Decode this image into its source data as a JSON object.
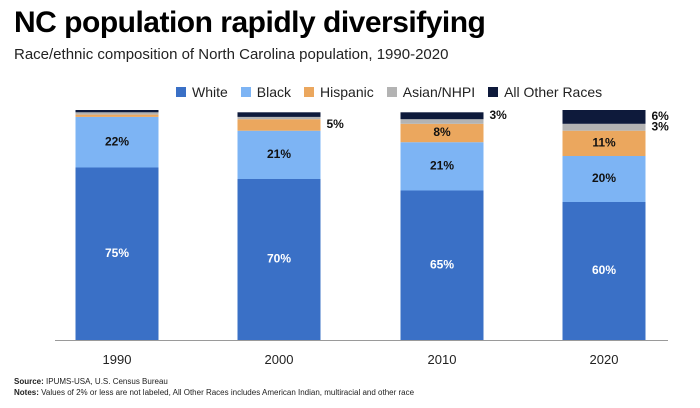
{
  "header": {
    "title": "NC population rapidly diversifying",
    "subtitle": "Race/ethnic composition of North Carolina population, 1990-2020"
  },
  "footer": {
    "source_label": "Source:",
    "source_text": "IPUMS-USA, U.S. Census Bureau",
    "notes_label": "Notes:",
    "notes_text": "Values of 2% or less are not labeled, All Other Races includes American Indian, multiracial and other race"
  },
  "colors": {
    "White": "#3a70c6",
    "Black": "#7db4f4",
    "Hispanic": "#eba75e",
    "Asian/NHPI": "#b3b3b3",
    "All Other Races": "#0e1a3b",
    "label_light": "#ffffff",
    "label_dark": "#111111"
  },
  "chart_data": {
    "type": "bar",
    "stacked": true,
    "legend_position": "top",
    "grid": false,
    "ylim": [
      0,
      100
    ],
    "categories": [
      "1990",
      "2000",
      "2010",
      "2020"
    ],
    "series": [
      {
        "name": "White",
        "values": [
          75,
          70,
          65,
          60
        ]
      },
      {
        "name": "Black",
        "values": [
          22,
          21,
          21,
          20
        ]
      },
      {
        "name": "Hispanic",
        "values": [
          1,
          5,
          8,
          11
        ]
      },
      {
        "name": "Asian/NHPI",
        "values": [
          1,
          1,
          2,
          3
        ]
      },
      {
        "name": "All Other Races",
        "values": [
          1,
          2,
          3,
          6
        ]
      }
    ],
    "labels": [
      [
        "75%",
        "70%",
        "65%",
        "60%"
      ],
      [
        "22%",
        "21%",
        "21%",
        "20%"
      ],
      [
        "",
        "5%",
        "8%",
        "11%"
      ],
      [
        "",
        "",
        "",
        "3%"
      ],
      [
        "",
        "",
        "3%",
        "6%"
      ]
    ]
  }
}
